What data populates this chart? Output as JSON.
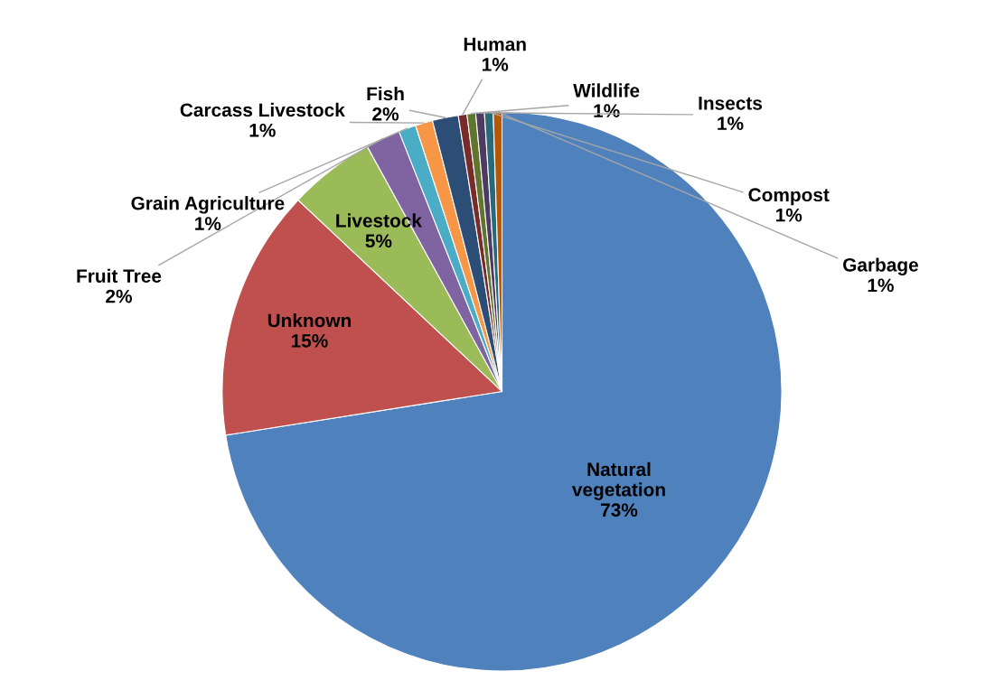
{
  "chart_data": {
    "type": "pie",
    "categories": [
      "Natural vegetation",
      "Unknown",
      "Livestock",
      "Fruit Tree",
      "Grain Agriculture",
      "Carcass Livestock",
      "Fish",
      "Human",
      "Wildlife",
      "Insects",
      "Compost",
      "Garbage"
    ],
    "values": [
      72.5,
      14.5,
      5,
      2,
      1,
      1,
      1.5,
      0.5,
      0.5,
      0.5,
      0.5,
      0.5
    ],
    "value_labels": [
      "73%",
      "15%",
      "5%",
      "2%",
      "1%",
      "1%",
      "2%",
      "1%",
      "1%",
      "1%",
      "1%",
      "1%"
    ],
    "colors": [
      "#4f81bd",
      "#c0504d",
      "#9bbb59",
      "#8064a2",
      "#4bacc6",
      "#f79646",
      "#2c4d75",
      "#772c2a",
      "#5f7530",
      "#4d3b62",
      "#276a7c",
      "#b65708"
    ],
    "legend": false
  }
}
